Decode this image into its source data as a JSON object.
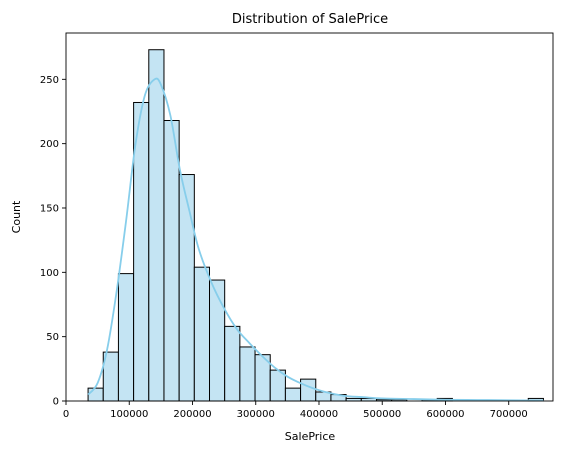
{
  "chart_data": {
    "type": "bar",
    "subtype": "histogram-with-kde",
    "title": "Distribution of SalePrice",
    "xlabel": "SalePrice",
    "ylabel": "Count",
    "xlim": [
      0,
      770000
    ],
    "ylim": [
      0,
      286
    ],
    "xticks": [
      0,
      100000,
      200000,
      300000,
      400000,
      500000,
      600000,
      700000
    ],
    "yticks": [
      0,
      50,
      100,
      150,
      200,
      250
    ],
    "grid": false,
    "colors": {
      "bar_fill": "#c4e4f3",
      "bar_edge": "#000000",
      "kde_line": "#87ceeb"
    },
    "bin_start": 34900,
    "bin_width": 24000,
    "counts": [
      10,
      38,
      99,
      232,
      273,
      218,
      176,
      104,
      94,
      58,
      42,
      36,
      24,
      10,
      17,
      7,
      5,
      2,
      2,
      1,
      1,
      0,
      1,
      2,
      0,
      0,
      0,
      0,
      0,
      2
    ],
    "kde": {
      "x": [
        35000,
        50000,
        65000,
        80000,
        95000,
        110000,
        125000,
        140000,
        150000,
        165000,
        180000,
        195000,
        210000,
        230000,
        250000,
        270000,
        290000,
        310000,
        330000,
        350000,
        370000,
        390000,
        410000,
        440000,
        470000,
        500000,
        550000,
        600000,
        650000,
        700000,
        755000
      ],
      "y": [
        5,
        14,
        40,
        85,
        140,
        200,
        238,
        250,
        246,
        222,
        180,
        148,
        118,
        92,
        72,
        56,
        45,
        35,
        26,
        19,
        14,
        10,
        7,
        4,
        3,
        2,
        1.5,
        1,
        0.8,
        0.6,
        0.3
      ]
    }
  }
}
